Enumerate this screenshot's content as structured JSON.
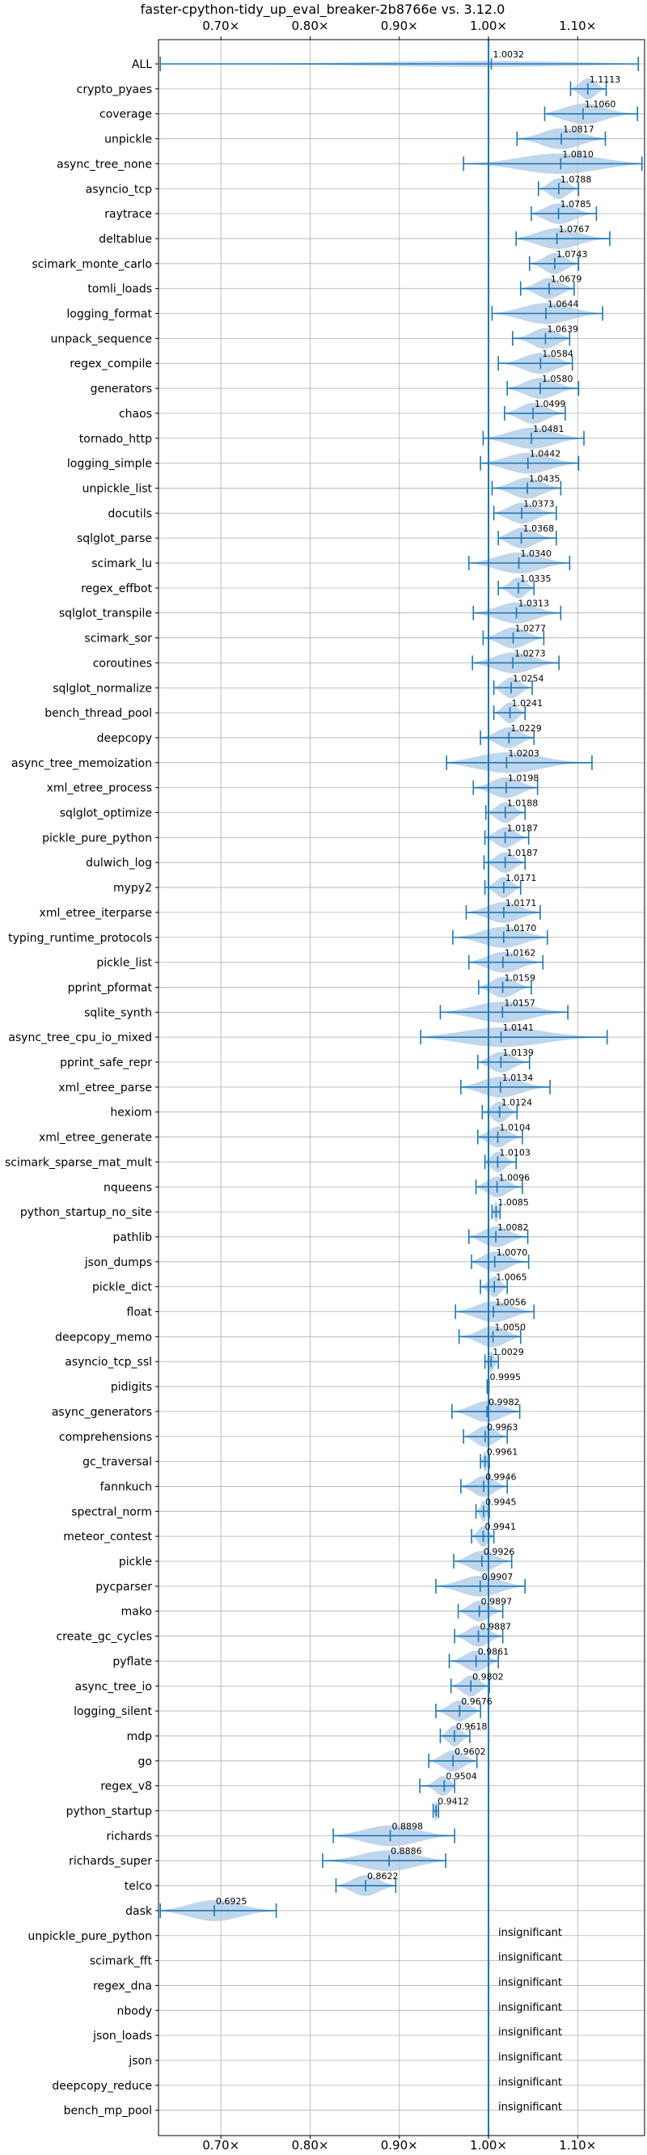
{
  "chart_data": {
    "type": "violin",
    "title": "faster-cpython-tidy_up_eval_breaker-2b8766e vs. 3.12.0",
    "xlabel": "",
    "ylabel": "",
    "xlim": [
      0.63,
      1.175
    ],
    "x_ticks": [
      0.7,
      0.8,
      0.9,
      1.0,
      1.1
    ],
    "x_tick_labels": [
      "0.70×",
      "0.80×",
      "0.90×",
      "1.00×",
      "1.10×"
    ],
    "reference_line": 1.0,
    "grid": true,
    "colors": {
      "violin": "#a9c8e5",
      "stat": "#1f77b4",
      "reference": "#1f77b4",
      "grid": "#b0b0b0"
    },
    "insignificant_label": "insignificant",
    "benchmarks": [
      {
        "name": "ALL",
        "value": 1.0032,
        "value_label": "1.0032",
        "min": 0.632,
        "max": 1.168
      },
      {
        "name": "crypto_pyaes",
        "value": 1.1113,
        "value_label": "1.1113",
        "min": 1.092,
        "max": 1.132
      },
      {
        "name": "coverage",
        "value": 1.106,
        "value_label": "1.1060",
        "min": 1.063,
        "max": 1.167
      },
      {
        "name": "unpickle",
        "value": 1.0817,
        "value_label": "1.0817",
        "min": 1.032,
        "max": 1.131
      },
      {
        "name": "async_tree_none",
        "value": 1.081,
        "value_label": "1.0810",
        "min": 0.972,
        "max": 1.172
      },
      {
        "name": "asyncio_tcp",
        "value": 1.0788,
        "value_label": "1.0788",
        "min": 1.056,
        "max": 1.101
      },
      {
        "name": "raytrace",
        "value": 1.0785,
        "value_label": "1.0785",
        "min": 1.048,
        "max": 1.121
      },
      {
        "name": "deltablue",
        "value": 1.0767,
        "value_label": "1.0767",
        "min": 1.031,
        "max": 1.136
      },
      {
        "name": "scimark_monte_carlo",
        "value": 1.0743,
        "value_label": "1.0743",
        "min": 1.046,
        "max": 1.101
      },
      {
        "name": "tomli_loads",
        "value": 1.0679,
        "value_label": "1.0679",
        "min": 1.036,
        "max": 1.096
      },
      {
        "name": "logging_format",
        "value": 1.0644,
        "value_label": "1.0644",
        "min": 1.004,
        "max": 1.128
      },
      {
        "name": "unpack_sequence",
        "value": 1.0639,
        "value_label": "1.0639",
        "min": 1.027,
        "max": 1.091
      },
      {
        "name": "regex_compile",
        "value": 1.0584,
        "value_label": "1.0584",
        "min": 1.011,
        "max": 1.094
      },
      {
        "name": "generators",
        "value": 1.058,
        "value_label": "1.0580",
        "min": 1.021,
        "max": 1.101
      },
      {
        "name": "chaos",
        "value": 1.0499,
        "value_label": "1.0499",
        "min": 1.018,
        "max": 1.086
      },
      {
        "name": "tornado_http",
        "value": 1.0481,
        "value_label": "1.0481",
        "min": 0.994,
        "max": 1.107
      },
      {
        "name": "logging_simple",
        "value": 1.0442,
        "value_label": "1.0442",
        "min": 0.991,
        "max": 1.101
      },
      {
        "name": "unpickle_list",
        "value": 1.0435,
        "value_label": "1.0435",
        "min": 1.004,
        "max": 1.081
      },
      {
        "name": "docutils",
        "value": 1.0373,
        "value_label": "1.0373",
        "min": 1.006,
        "max": 1.076
      },
      {
        "name": "sqlglot_parse",
        "value": 1.0368,
        "value_label": "1.0368",
        "min": 1.011,
        "max": 1.076
      },
      {
        "name": "scimark_lu",
        "value": 1.034,
        "value_label": "1.0340",
        "min": 0.978,
        "max": 1.091
      },
      {
        "name": "regex_effbot",
        "value": 1.0335,
        "value_label": "1.0335",
        "min": 1.011,
        "max": 1.051
      },
      {
        "name": "sqlglot_transpile",
        "value": 1.0313,
        "value_label": "1.0313",
        "min": 0.983,
        "max": 1.081
      },
      {
        "name": "scimark_sor",
        "value": 1.0277,
        "value_label": "1.0277",
        "min": 0.994,
        "max": 1.062
      },
      {
        "name": "coroutines",
        "value": 1.0273,
        "value_label": "1.0273",
        "min": 0.982,
        "max": 1.079
      },
      {
        "name": "sqlglot_normalize",
        "value": 1.0254,
        "value_label": "1.0254",
        "min": 1.006,
        "max": 1.049
      },
      {
        "name": "bench_thread_pool",
        "value": 1.0241,
        "value_label": "1.0241",
        "min": 1.006,
        "max": 1.041
      },
      {
        "name": "deepcopy",
        "value": 1.0229,
        "value_label": "1.0229",
        "min": 0.991,
        "max": 1.051
      },
      {
        "name": "async_tree_memoization",
        "value": 1.0203,
        "value_label": "1.0203",
        "min": 0.953,
        "max": 1.116
      },
      {
        "name": "xml_etree_process",
        "value": 1.0198,
        "value_label": "1.0198",
        "min": 0.983,
        "max": 1.055
      },
      {
        "name": "sqlglot_optimize",
        "value": 1.0188,
        "value_label": "1.0188",
        "min": 0.997,
        "max": 1.041
      },
      {
        "name": "pickle_pure_python",
        "value": 1.0187,
        "value_label": "1.0187",
        "min": 0.996,
        "max": 1.045
      },
      {
        "name": "dulwich_log",
        "value": 1.0187,
        "value_label": "1.0187",
        "min": 0.995,
        "max": 1.041
      },
      {
        "name": "mypy2",
        "value": 1.0171,
        "value_label": "1.0171",
        "min": 0.996,
        "max": 1.036
      },
      {
        "name": "xml_etree_iterparse",
        "value": 1.0171,
        "value_label": "1.0171",
        "min": 0.975,
        "max": 1.058
      },
      {
        "name": "typing_runtime_protocols",
        "value": 1.017,
        "value_label": "1.0170",
        "min": 0.96,
        "max": 1.066
      },
      {
        "name": "pickle_list",
        "value": 1.0162,
        "value_label": "1.0162",
        "min": 0.978,
        "max": 1.061
      },
      {
        "name": "pprint_pformat",
        "value": 1.0159,
        "value_label": "1.0159",
        "min": 0.989,
        "max": 1.048
      },
      {
        "name": "sqlite_synth",
        "value": 1.0157,
        "value_label": "1.0157",
        "min": 0.946,
        "max": 1.089
      },
      {
        "name": "async_tree_cpu_io_mixed",
        "value": 1.0141,
        "value_label": "1.0141",
        "min": 0.924,
        "max": 1.133
      },
      {
        "name": "pprint_safe_repr",
        "value": 1.0139,
        "value_label": "1.0139",
        "min": 0.988,
        "max": 1.046
      },
      {
        "name": "xml_etree_parse",
        "value": 1.0134,
        "value_label": "1.0134",
        "min": 0.969,
        "max": 1.069
      },
      {
        "name": "hexiom",
        "value": 1.0124,
        "value_label": "1.0124",
        "min": 0.993,
        "max": 1.032
      },
      {
        "name": "xml_etree_generate",
        "value": 1.0104,
        "value_label": "1.0104",
        "min": 0.988,
        "max": 1.038
      },
      {
        "name": "scimark_sparse_mat_mult",
        "value": 1.0103,
        "value_label": "1.0103",
        "min": 0.996,
        "max": 1.031
      },
      {
        "name": "nqueens",
        "value": 1.0096,
        "value_label": "1.0096",
        "min": 0.986,
        "max": 1.038
      },
      {
        "name": "python_startup_no_site",
        "value": 1.0085,
        "value_label": "1.0085",
        "min": 1.004,
        "max": 1.013
      },
      {
        "name": "pathlib",
        "value": 1.0082,
        "value_label": "1.0082",
        "min": 0.978,
        "max": 1.044
      },
      {
        "name": "json_dumps",
        "value": 1.007,
        "value_label": "1.0070",
        "min": 0.981,
        "max": 1.045
      },
      {
        "name": "pickle_dict",
        "value": 1.0065,
        "value_label": "1.0065",
        "min": 0.991,
        "max": 1.021
      },
      {
        "name": "float",
        "value": 1.0056,
        "value_label": "1.0056",
        "min": 0.963,
        "max": 1.051
      },
      {
        "name": "deepcopy_memo",
        "value": 1.005,
        "value_label": "1.0050",
        "min": 0.967,
        "max": 1.036
      },
      {
        "name": "asyncio_tcp_ssl",
        "value": 1.0029,
        "value_label": "1.0029",
        "min": 0.996,
        "max": 1.011
      },
      {
        "name": "pidigits",
        "value": 0.9995,
        "value_label": "0.9995",
        "min": 0.9985,
        "max": 1.0005
      },
      {
        "name": "async_generators",
        "value": 0.9982,
        "value_label": "0.9982",
        "min": 0.959,
        "max": 1.035
      },
      {
        "name": "comprehensions",
        "value": 0.9963,
        "value_label": "0.9963",
        "min": 0.972,
        "max": 1.021
      },
      {
        "name": "gc_traversal",
        "value": 0.9961,
        "value_label": "0.9961",
        "min": 0.991,
        "max": 1.001
      },
      {
        "name": "fannkuch",
        "value": 0.9946,
        "value_label": "0.9946",
        "min": 0.969,
        "max": 1.021
      },
      {
        "name": "spectral_norm",
        "value": 0.9945,
        "value_label": "0.9945",
        "min": 0.986,
        "max": 1.001
      },
      {
        "name": "meteor_contest",
        "value": 0.9941,
        "value_label": "0.9941",
        "min": 0.981,
        "max": 1.006
      },
      {
        "name": "pickle",
        "value": 0.9926,
        "value_label": "0.9926",
        "min": 0.961,
        "max": 1.026
      },
      {
        "name": "pycparser",
        "value": 0.9907,
        "value_label": "0.9907",
        "min": 0.941,
        "max": 1.041
      },
      {
        "name": "mako",
        "value": 0.9897,
        "value_label": "0.9897",
        "min": 0.966,
        "max": 1.016
      },
      {
        "name": "create_gc_cycles",
        "value": 0.9887,
        "value_label": "0.9887",
        "min": 0.962,
        "max": 1.016
      },
      {
        "name": "pyflate",
        "value": 0.9861,
        "value_label": "0.9861",
        "min": 0.956,
        "max": 1.011
      },
      {
        "name": "async_tree_io",
        "value": 0.9802,
        "value_label": "0.9802",
        "min": 0.958,
        "max": 1.001
      },
      {
        "name": "logging_silent",
        "value": 0.9676,
        "value_label": "0.9676",
        "min": 0.941,
        "max": 0.991
      },
      {
        "name": "mdp",
        "value": 0.9618,
        "value_label": "0.9618",
        "min": 0.946,
        "max": 0.979
      },
      {
        "name": "go",
        "value": 0.9602,
        "value_label": "0.9602",
        "min": 0.933,
        "max": 0.987
      },
      {
        "name": "regex_v8",
        "value": 0.9504,
        "value_label": "0.9504",
        "min": 0.923,
        "max": 0.962
      },
      {
        "name": "python_startup",
        "value": 0.9412,
        "value_label": "0.9412",
        "min": 0.938,
        "max": 0.944
      },
      {
        "name": "richards",
        "value": 0.8898,
        "value_label": "0.8898",
        "min": 0.826,
        "max": 0.962
      },
      {
        "name": "richards_super",
        "value": 0.8886,
        "value_label": "0.8886",
        "min": 0.814,
        "max": 0.952
      },
      {
        "name": "telco",
        "value": 0.8622,
        "value_label": "0.8622",
        "min": 0.829,
        "max": 0.896
      },
      {
        "name": "dask",
        "value": 0.6925,
        "value_label": "0.6925",
        "min": 0.632,
        "max": 0.762
      },
      {
        "name": "unpickle_pure_python",
        "insignificant": true
      },
      {
        "name": "scimark_fft",
        "insignificant": true
      },
      {
        "name": "regex_dna",
        "insignificant": true
      },
      {
        "name": "nbody",
        "insignificant": true
      },
      {
        "name": "json_loads",
        "insignificant": true
      },
      {
        "name": "json",
        "insignificant": true
      },
      {
        "name": "deepcopy_reduce",
        "insignificant": true
      },
      {
        "name": "bench_mp_pool",
        "insignificant": true
      }
    ]
  }
}
